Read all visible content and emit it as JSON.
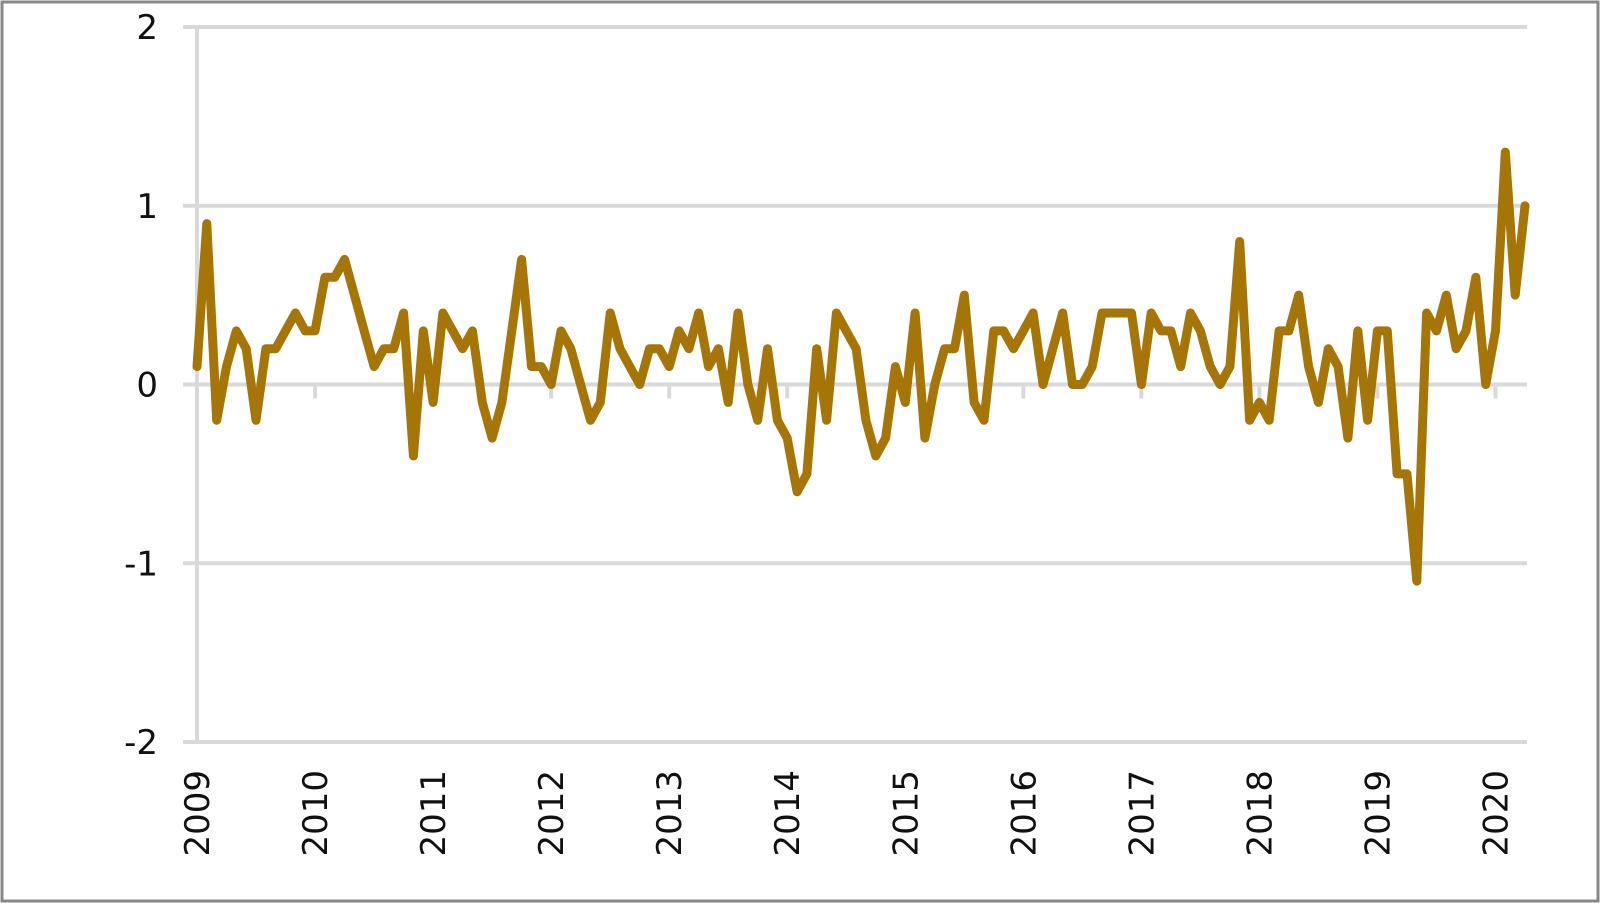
{
  "chart_data": {
    "type": "line",
    "categories": [
      "2009",
      null,
      null,
      null,
      null,
      null,
      null,
      null,
      null,
      null,
      null,
      null,
      "2010",
      null,
      null,
      null,
      null,
      null,
      null,
      null,
      null,
      null,
      null,
      null,
      "2011",
      null,
      null,
      null,
      null,
      null,
      null,
      null,
      null,
      null,
      null,
      null,
      "2012",
      null,
      null,
      null,
      null,
      null,
      null,
      null,
      null,
      null,
      null,
      null,
      "2013",
      null,
      null,
      null,
      null,
      null,
      null,
      null,
      null,
      null,
      null,
      null,
      "2014",
      null,
      null,
      null,
      null,
      null,
      null,
      null,
      null,
      null,
      null,
      null,
      "2015",
      null,
      null,
      null,
      null,
      null,
      null,
      null,
      null,
      null,
      null,
      null,
      "2016",
      null,
      null,
      null,
      null,
      null,
      null,
      null,
      null,
      null,
      null,
      null,
      "2017",
      null,
      null,
      null,
      null,
      null,
      null,
      null,
      null,
      null,
      null,
      null,
      "2018",
      null,
      null,
      null,
      null,
      null,
      null,
      null,
      null,
      null,
      null,
      null,
      "2019",
      null,
      null,
      null,
      null,
      null,
      null,
      null,
      null,
      null,
      null,
      null,
      "2020",
      null,
      null,
      null
    ],
    "values": [
      0.1,
      0.9,
      -0.2,
      0.1,
      0.3,
      0.2,
      -0.2,
      0.2,
      0.2,
      0.3,
      0.4,
      0.3,
      0.3,
      0.6,
      0.6,
      0.7,
      0.5,
      0.3,
      0.1,
      0.2,
      0.2,
      0.4,
      -0.4,
      0.3,
      -0.1,
      0.4,
      0.3,
      0.2,
      0.3,
      -0.1,
      -0.3,
      -0.1,
      0.3,
      0.7,
      0.1,
      0.1,
      0,
      0.3,
      0.2,
      0,
      -0.2,
      -0.1,
      0.4,
      0.2,
      0.1,
      0,
      0.2,
      0.2,
      0.1,
      0.3,
      0.2,
      0.4,
      0.1,
      0.2,
      -0.1,
      0.4,
      0,
      -0.2,
      0.2,
      -0.2,
      -0.3,
      -0.6,
      -0.5,
      0.2,
      -0.2,
      0.4,
      0.3,
      0.2,
      -0.2,
      -0.4,
      -0.3,
      0.1,
      -0.1,
      0.4,
      -0.3,
      0,
      0.2,
      0.2,
      0.5,
      -0.1,
      -0.2,
      0.3,
      0.3,
      0.2,
      0.3,
      0.4,
      0,
      0.2,
      0.4,
      0,
      0,
      0.1,
      0.4,
      0.4,
      0.4,
      0.4,
      0,
      0.4,
      0.3,
      0.3,
      0.1,
      0.4,
      0.3,
      0.1,
      0,
      0.1,
      0.8,
      -0.2,
      -0.1,
      -0.2,
      0.3,
      0.3,
      0.5,
      0.1,
      -0.1,
      0.2,
      0.1,
      -0.3,
      0.3,
      -0.2,
      0.3,
      0.3,
      -0.5,
      -0.5,
      -1.1,
      0.4,
      0.3,
      0.5,
      0.2,
      0.3,
      0.6,
      0,
      0.3,
      1.3,
      0.5,
      1.0
    ],
    "color": "#a67508",
    "ylim": [
      -2,
      2
    ],
    "yticks": [
      -2,
      -1,
      0,
      1,
      2
    ],
    "grid": true
  }
}
